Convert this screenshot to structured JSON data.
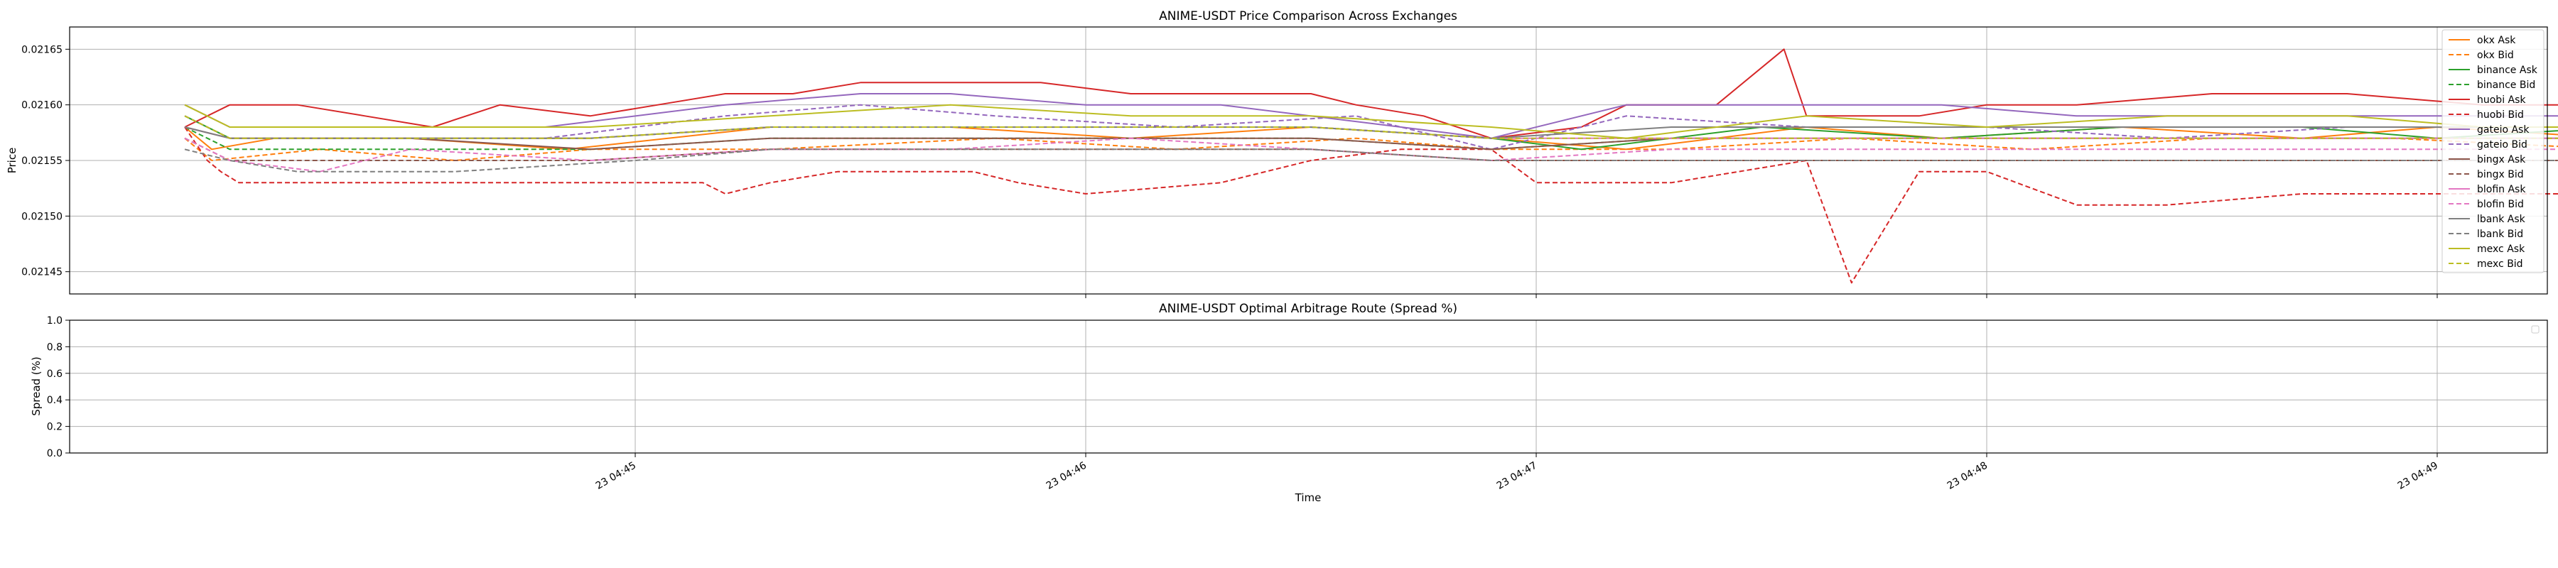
{
  "chart_data": [
    {
      "type": "line",
      "title": "ANIME-USDT Price Comparison Across Exchanges",
      "xlabel": "",
      "ylabel": "Price",
      "ylim": [
        0.02143,
        0.02167
      ],
      "yticks": [
        0.02145,
        0.0215,
        0.02155,
        0.0216,
        0.02165
      ],
      "ytick_labels": [
        "0.02145",
        "0.02150",
        "0.02155",
        "0.02160",
        "0.02165"
      ],
      "xticks": [
        1,
        2,
        3,
        4,
        5
      ],
      "grid": true,
      "legend_position": "right",
      "series": [
        {
          "name": "okx Ask",
          "color": "#ff7f0e",
          "dash": "solid",
          "x": [
            0.0,
            0.06,
            0.2,
            0.5,
            0.85,
            1.3,
            1.7,
            2.1,
            2.5,
            2.9,
            3.2,
            3.6,
            3.9,
            4.3,
            4.7,
            5.0,
            5.4
          ],
          "y": [
            0.02158,
            0.02156,
            0.02157,
            0.02157,
            0.02156,
            0.02158,
            0.02158,
            0.02157,
            0.02158,
            0.02157,
            0.02156,
            0.02158,
            0.02157,
            0.02158,
            0.02157,
            0.02158,
            0.02157
          ]
        },
        {
          "name": "okx Bid",
          "color": "#ff7f0e",
          "dash": "dashed",
          "x": [
            0.0,
            0.06,
            0.3,
            0.6,
            0.9,
            1.3,
            1.8,
            2.2,
            2.6,
            2.9,
            3.3,
            3.7,
            4.1,
            4.5,
            4.9,
            5.4
          ],
          "y": [
            0.02157,
            0.02155,
            0.02156,
            0.02155,
            0.02156,
            0.02156,
            0.02157,
            0.02156,
            0.02157,
            0.02156,
            0.02156,
            0.02157,
            0.02156,
            0.02157,
            0.02157,
            0.02156
          ]
        },
        {
          "name": "binance Ask",
          "color": "#2ca02c",
          "dash": "solid",
          "x": [
            0.0,
            0.1,
            0.5,
            0.9,
            1.3,
            1.7,
            2.1,
            2.5,
            2.9,
            3.1,
            3.5,
            3.9,
            4.3,
            4.7,
            5.0,
            5.4
          ],
          "y": [
            0.02159,
            0.02157,
            0.02157,
            0.02157,
            0.02158,
            0.02158,
            0.02158,
            0.02158,
            0.02157,
            0.02156,
            0.02158,
            0.02157,
            0.02158,
            0.02158,
            0.02157,
            0.02158
          ]
        },
        {
          "name": "binance Bid",
          "color": "#2ca02c",
          "dash": "dashed",
          "x": [
            0.0,
            0.1,
            0.5,
            0.9,
            1.3,
            1.7,
            2.1,
            2.5,
            2.9,
            3.3,
            3.7,
            4.1,
            4.5,
            4.9,
            5.4
          ],
          "y": [
            0.02158,
            0.02156,
            0.02156,
            0.02156,
            0.02157,
            0.02157,
            0.02157,
            0.02157,
            0.02156,
            0.02157,
            0.02157,
            0.02157,
            0.02157,
            0.02157,
            0.02157
          ]
        },
        {
          "name": "huobi Ask",
          "color": "#d62728",
          "dash": "solid",
          "x": [
            0.0,
            0.1,
            0.25,
            0.4,
            0.55,
            0.7,
            0.9,
            1.05,
            1.2,
            1.35,
            1.5,
            1.6,
            1.75,
            1.9,
            2.1,
            2.3,
            2.5,
            2.6,
            2.75,
            2.9,
            3.1,
            3.2,
            3.4,
            3.55,
            3.6,
            3.85,
            4.0,
            4.2,
            4.5,
            4.8,
            5.1,
            5.4
          ],
          "y": [
            0.02158,
            0.0216,
            0.0216,
            0.02159,
            0.02158,
            0.0216,
            0.02159,
            0.0216,
            0.02161,
            0.02161,
            0.02162,
            0.02162,
            0.02162,
            0.02162,
            0.02161,
            0.02161,
            0.02161,
            0.0216,
            0.02159,
            0.02157,
            0.02158,
            0.0216,
            0.0216,
            0.02165,
            0.02159,
            0.02159,
            0.0216,
            0.0216,
            0.02161,
            0.02161,
            0.0216,
            0.0216
          ]
        },
        {
          "name": "huobi Bid",
          "color": "#d62728",
          "dash": "dashed",
          "x": [
            0.0,
            0.05,
            0.08,
            0.12,
            0.3,
            0.5,
            0.9,
            1.15,
            1.2,
            1.3,
            1.45,
            1.6,
            1.75,
            1.85,
            2.0,
            2.3,
            2.5,
            2.7,
            2.9,
            3.0,
            3.1,
            3.3,
            3.6,
            3.7,
            3.85,
            4.0,
            4.2,
            4.4,
            4.7,
            5.0,
            5.4
          ],
          "y": [
            0.02158,
            0.02155,
            0.02154,
            0.02153,
            0.02153,
            0.02153,
            0.02153,
            0.02153,
            0.02152,
            0.02153,
            0.02154,
            0.02154,
            0.02154,
            0.02153,
            0.02152,
            0.02153,
            0.02155,
            0.02156,
            0.02156,
            0.02153,
            0.02153,
            0.02153,
            0.02155,
            0.02144,
            0.02154,
            0.02154,
            0.02151,
            0.02151,
            0.02152,
            0.02152,
            0.02152
          ]
        },
        {
          "name": "gateio Ask",
          "color": "#9467bd",
          "dash": "solid",
          "x": [
            0.0,
            0.1,
            0.4,
            0.8,
            1.2,
            1.5,
            1.7,
            2.0,
            2.3,
            2.7,
            2.9,
            3.2,
            3.5,
            3.9,
            4.2,
            4.6,
            5.0,
            5.4
          ],
          "y": [
            0.0216,
            0.02158,
            0.02158,
            0.02158,
            0.0216,
            0.02161,
            0.02161,
            0.0216,
            0.0216,
            0.02158,
            0.02157,
            0.0216,
            0.0216,
            0.0216,
            0.02159,
            0.02159,
            0.02159,
            0.02159
          ]
        },
        {
          "name": "gateio Bid",
          "color": "#9467bd",
          "dash": "dashed",
          "x": [
            0.0,
            0.1,
            0.4,
            0.8,
            1.2,
            1.5,
            1.8,
            2.2,
            2.6,
            2.9,
            3.2,
            3.6,
            4.0,
            4.4,
            4.8,
            5.4
          ],
          "y": [
            0.02159,
            0.02157,
            0.02157,
            0.02157,
            0.02159,
            0.0216,
            0.02159,
            0.02158,
            0.02159,
            0.02156,
            0.02159,
            0.02158,
            0.02158,
            0.02157,
            0.02158,
            0.02158
          ]
        },
        {
          "name": "bingx Ask",
          "color": "#8c564b",
          "dash": "solid",
          "x": [
            0.0,
            0.1,
            0.5,
            0.9,
            1.3,
            1.7,
            2.1,
            2.5,
            2.9,
            3.3,
            3.7,
            4.1,
            4.5,
            4.9,
            5.4
          ],
          "y": [
            0.02158,
            0.02157,
            0.02157,
            0.02156,
            0.02157,
            0.02157,
            0.02157,
            0.02157,
            0.02156,
            0.02157,
            0.02157,
            0.02157,
            0.02157,
            0.02157,
            0.02157
          ]
        },
        {
          "name": "bingx Bid",
          "color": "#8c564b",
          "dash": "dashed",
          "x": [
            0.0,
            0.1,
            0.5,
            0.9,
            1.3,
            1.7,
            2.1,
            2.5,
            2.9,
            3.3,
            3.7,
            4.1,
            4.5,
            4.9,
            5.4
          ],
          "y": [
            0.02157,
            0.02155,
            0.02155,
            0.02155,
            0.02156,
            0.02156,
            0.02156,
            0.02156,
            0.02155,
            0.02155,
            0.02155,
            0.02155,
            0.02155,
            0.02155,
            0.02155
          ]
        },
        {
          "name": "blofin Ask",
          "color": "#e377c2",
          "dash": "solid",
          "x": [
            0.0,
            0.1,
            0.5,
            0.9,
            1.3,
            1.7,
            2.1,
            2.5,
            2.9,
            3.3,
            3.7,
            4.1,
            4.5,
            4.9,
            5.4
          ],
          "y": [
            0.02158,
            0.02157,
            0.02157,
            0.02157,
            0.02158,
            0.02158,
            0.02158,
            0.02158,
            0.02157,
            0.02157,
            0.02157,
            0.02157,
            0.02157,
            0.02157,
            0.02157
          ]
        },
        {
          "name": "blofin Bid",
          "color": "#e377c2",
          "dash": "dashed",
          "x": [
            0.0,
            0.1,
            0.3,
            0.5,
            0.9,
            1.3,
            1.7,
            2.1,
            2.5,
            2.9,
            3.3,
            3.7,
            4.1,
            4.5,
            4.9,
            5.4
          ],
          "y": [
            0.02157,
            0.02155,
            0.02154,
            0.02156,
            0.02155,
            0.02156,
            0.02156,
            0.02157,
            0.02156,
            0.02155,
            0.02156,
            0.02156,
            0.02156,
            0.02156,
            0.02156,
            0.02156
          ]
        },
        {
          "name": "lbank Ask",
          "color": "#7f7f7f",
          "dash": "solid",
          "x": [
            0.0,
            0.1,
            0.5,
            0.9,
            1.3,
            1.7,
            2.1,
            2.5,
            2.9,
            3.3,
            3.7,
            4.1,
            4.5,
            4.9,
            5.4
          ],
          "y": [
            0.02158,
            0.02157,
            0.02157,
            0.02157,
            0.02158,
            0.02158,
            0.02158,
            0.02158,
            0.02157,
            0.02158,
            0.02158,
            0.02158,
            0.02158,
            0.02158,
            0.02158
          ]
        },
        {
          "name": "lbank Bid",
          "color": "#7f7f7f",
          "dash": "dashed",
          "x": [
            0.0,
            0.1,
            0.25,
            0.6,
            1.0,
            1.3,
            1.7,
            2.1,
            2.5,
            2.9,
            3.3,
            3.7,
            4.1,
            4.5,
            4.9,
            5.4
          ],
          "y": [
            0.02156,
            0.02155,
            0.02154,
            0.02154,
            0.02155,
            0.02156,
            0.02156,
            0.02156,
            0.02156,
            0.02155,
            0.02155,
            0.02155,
            0.02155,
            0.02155,
            0.02155,
            0.02155
          ]
        },
        {
          "name": "mexc Ask",
          "color": "#bcbd22",
          "dash": "solid",
          "x": [
            0.0,
            0.1,
            0.5,
            0.9,
            1.3,
            1.7,
            2.1,
            2.5,
            2.9,
            3.2,
            3.6,
            4.0,
            4.4,
            4.8,
            5.1,
            5.4
          ],
          "y": [
            0.0216,
            0.02158,
            0.02158,
            0.02158,
            0.02159,
            0.0216,
            0.02159,
            0.02159,
            0.02158,
            0.02157,
            0.02159,
            0.02158,
            0.02159,
            0.02159,
            0.02158,
            0.02158
          ]
        },
        {
          "name": "mexc Bid",
          "color": "#bcbd22",
          "dash": "dashed",
          "x": [
            0.0,
            0.1,
            0.5,
            0.9,
            1.3,
            1.7,
            2.1,
            2.5,
            2.9,
            3.3,
            3.7,
            4.1,
            4.5,
            4.9,
            5.4
          ],
          "y": [
            0.02159,
            0.02157,
            0.02157,
            0.02157,
            0.02158,
            0.02158,
            0.02158,
            0.02158,
            0.02157,
            0.02157,
            0.02157,
            0.02157,
            0.02157,
            0.02157,
            0.02157
          ]
        }
      ]
    },
    {
      "type": "line",
      "title": "ANIME-USDT Optimal Arbitrage Route (Spread %)",
      "xlabel": "Time",
      "ylabel": "Spread (%)",
      "ylim": [
        0.0,
        1.0
      ],
      "yticks": [
        0.0,
        0.2,
        0.4,
        0.6,
        0.8,
        1.0
      ],
      "ytick_labels": [
        "0.0",
        "0.2",
        "0.4",
        "0.6",
        "0.8",
        "1.0"
      ],
      "xticks": [
        1,
        2,
        3,
        4,
        5
      ],
      "xtick_labels": [
        "23 04:45",
        "23 04:46",
        "23 04:47",
        "23 04:48",
        "23 04:49"
      ],
      "grid": true,
      "legend_position": "top-right",
      "series": []
    }
  ]
}
